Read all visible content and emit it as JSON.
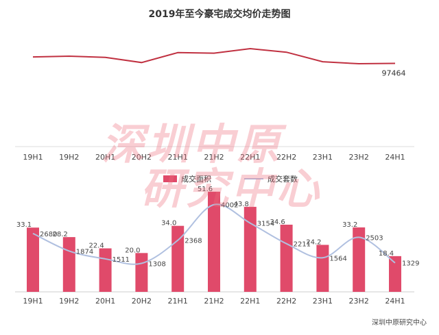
{
  "title": "2019年至今豪宅成交均价走势图",
  "source": "深圳中原研究中心",
  "watermark": [
    "深圳中原",
    "研究中心"
  ],
  "colors": {
    "bar": "#e04a6a",
    "count_line": "#b0c0e0",
    "price_line": "#c03040"
  },
  "chart_data": [
    {
      "type": "line",
      "x": [
        "19H1",
        "19H2",
        "20H1",
        "20H2",
        "21H1",
        "21H2",
        "22H1",
        "22H2",
        "23H1",
        "23H2",
        "24H1"
      ],
      "series": [
        {
          "name": "",
          "values": [
            null,
            null,
            null,
            null,
            null,
            null,
            null,
            null,
            null,
            null,
            97464
          ]
        }
      ],
      "visible_labels": [
        {
          "index": 10,
          "text": "97464"
        }
      ],
      "grid": false
    },
    {
      "type": "bar",
      "categories": [
        "19H1",
        "19H2",
        "20H1",
        "20H2",
        "21H1",
        "21H2",
        "22H1",
        "22H2",
        "23H1",
        "23H2",
        "24H1"
      ],
      "series": [
        {
          "name": "成交面积",
          "values": [
            33.1,
            28.2,
            22.4,
            20.0,
            34.0,
            51.6,
            43.8,
            34.6,
            24.2,
            33.2,
            18.4
          ]
        },
        {
          "name": "成交套数",
          "values": [
            2680,
            1874,
            1511,
            1308,
            2368,
            4002,
            3154,
            2211,
            1564,
            2503,
            1329
          ]
        }
      ],
      "legend_position": "top",
      "grid": false
    }
  ]
}
